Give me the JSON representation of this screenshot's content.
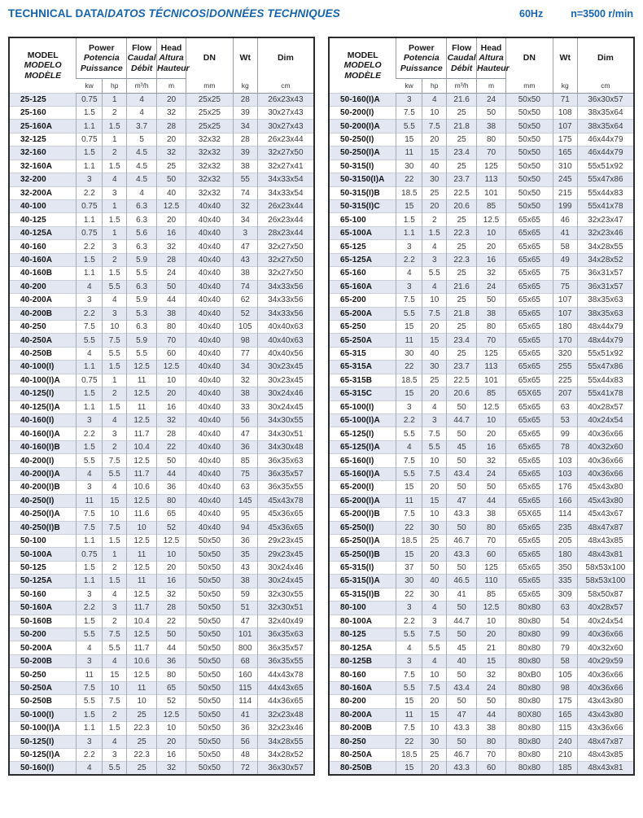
{
  "page": {
    "title_en": "TECHNICAL DATA",
    "title_es": "DATOS TÉCNICOS",
    "title_fr": "DONNÉES TECHNIQUES",
    "title_separator": "/",
    "frequency": "60Hz",
    "speed": "n=3500 r/min",
    "accent_color": "#1463ae",
    "band_color": "#e2e7f1"
  },
  "header": {
    "model": [
      "MODEL",
      "MODELO",
      "MODÈLE"
    ],
    "power": [
      "Power",
      "Potencia",
      "Puissance"
    ],
    "flow": [
      "Flow",
      "Caudal",
      "Débit"
    ],
    "head": [
      "Head",
      "Altura",
      "Hauteur"
    ],
    "dn": "DN",
    "wt": "Wt",
    "dim": "Dim",
    "units": {
      "kw": "kw",
      "hp": "hp",
      "flow": "m³/h",
      "head": "m",
      "dn": "mm",
      "wt": "kg",
      "dim": "cm"
    }
  },
  "tables": {
    "left": {
      "rows": [
        [
          "25-125",
          "0.75",
          "1",
          "4",
          "20",
          "25x25",
          "28",
          "26x23x43"
        ],
        [
          "25-160",
          "1.5",
          "2",
          "4",
          "32",
          "25x25",
          "39",
          "30x27x43"
        ],
        [
          "25-160A",
          "1.1",
          "1.5",
          "3.7",
          "28",
          "25x25",
          "34",
          "30x27x43"
        ],
        [
          "32-125",
          "0.75",
          "1",
          "5",
          "20",
          "32x32",
          "28",
          "26x23x44"
        ],
        [
          "32-160",
          "1.5",
          "2",
          "4.5",
          "32",
          "32x32",
          "39",
          "32x27x50"
        ],
        [
          "32-160A",
          "1.1",
          "1.5",
          "4.5",
          "25",
          "32x32",
          "38",
          "32x27x41"
        ],
        [
          "32-200",
          "3",
          "4",
          "4.5",
          "50",
          "32x32",
          "55",
          "34x33x54"
        ],
        [
          "32-200A",
          "2.2",
          "3",
          "4",
          "40",
          "32x32",
          "74",
          "34x33x54"
        ],
        [
          "40-100",
          "0.75",
          "1",
          "6.3",
          "12.5",
          "40x40",
          "32",
          "26x23x44"
        ],
        [
          "40-125",
          "1.1",
          "1.5",
          "6.3",
          "20",
          "40x40",
          "34",
          "26x23x44"
        ],
        [
          "40-125A",
          "0.75",
          "1",
          "5.6",
          "16",
          "40x40",
          "3",
          "28x23x44"
        ],
        [
          "40-160",
          "2.2",
          "3",
          "6.3",
          "32",
          "40x40",
          "47",
          "32x27x50"
        ],
        [
          "40-160A",
          "1.5",
          "2",
          "5.9",
          "28",
          "40x40",
          "43",
          "32x27x50"
        ],
        [
          "40-160B",
          "1.1",
          "1.5",
          "5.5",
          "24",
          "40x40",
          "38",
          "32x27x50"
        ],
        [
          "40-200",
          "4",
          "5.5",
          "6.3",
          "50",
          "40x40",
          "74",
          "34x33x56"
        ],
        [
          "40-200A",
          "3",
          "4",
          "5.9",
          "44",
          "40x40",
          "62",
          "34x33x56"
        ],
        [
          "40-200B",
          "2.2",
          "3",
          "5.3",
          "38",
          "40x40",
          "52",
          "34x33x56"
        ],
        [
          "40-250",
          "7.5",
          "10",
          "6.3",
          "80",
          "40x40",
          "105",
          "40x40x63"
        ],
        [
          "40-250A",
          "5.5",
          "7.5",
          "5.9",
          "70",
          "40x40",
          "98",
          "40x40x63"
        ],
        [
          "40-250B",
          "4",
          "5.5",
          "5.5",
          "60",
          "40x40",
          "77",
          "40x40x56"
        ],
        [
          "40-100(I)",
          "1.1",
          "1.5",
          "12.5",
          "12.5",
          "40x40",
          "34",
          "30x23x45"
        ],
        [
          "40-100(I)A",
          "0.75",
          "1",
          "11",
          "10",
          "40x40",
          "32",
          "30x23x45"
        ],
        [
          "40-125(I)",
          "1.5",
          "2",
          "12.5",
          "20",
          "40x40",
          "38",
          "30x24x46"
        ],
        [
          "40-125(I)A",
          "1.1",
          "1.5",
          "11",
          "16",
          "40x40",
          "33",
          "30x24x45"
        ],
        [
          "40-160(I)",
          "3",
          "4",
          "12.5",
          "32",
          "40x40",
          "56",
          "34x30x55"
        ],
        [
          "40-160(I)A",
          "2.2",
          "3",
          "11.7",
          "28",
          "40x40",
          "47",
          "34x30x51"
        ],
        [
          "40-160(I)B",
          "1.5",
          "2",
          "10.4",
          "22",
          "40x40",
          "36",
          "34x30x48"
        ],
        [
          "40-200(I)",
          "5.5",
          "7.5",
          "12.5",
          "50",
          "40x40",
          "85",
          "36x35x63"
        ],
        [
          "40-200(I)A",
          "4",
          "5.5",
          "11.7",
          "44",
          "40x40",
          "75",
          "36x35x57"
        ],
        [
          "40-200(I)B",
          "3",
          "4",
          "10.6",
          "36",
          "40x40",
          "63",
          "36x35x55"
        ],
        [
          "40-250(I)",
          "11",
          "15",
          "12.5",
          "80",
          "40x40",
          "145",
          "45x43x78"
        ],
        [
          "40-250(I)A",
          "7.5",
          "10",
          "11.6",
          "65",
          "40x40",
          "95",
          "45x36x65"
        ],
        [
          "40-250(I)B",
          "7.5",
          "7.5",
          "10",
          "52",
          "40x40",
          "94",
          "45x36x65"
        ],
        [
          "50-100",
          "1.1",
          "1.5",
          "12.5",
          "12.5",
          "50x50",
          "36",
          "29x23x45"
        ],
        [
          "50-100A",
          "0.75",
          "1",
          "11",
          "10",
          "50x50",
          "35",
          "29x23x45"
        ],
        [
          "50-125",
          "1.5",
          "2",
          "12.5",
          "20",
          "50x50",
          "43",
          "30x24x46"
        ],
        [
          "50-125A",
          "1.1",
          "1.5",
          "11",
          "16",
          "50x50",
          "38",
          "30x24x45"
        ],
        [
          "50-160",
          "3",
          "4",
          "12.5",
          "32",
          "50x50",
          "59",
          "32x30x55"
        ],
        [
          "50-160A",
          "2.2",
          "3",
          "11.7",
          "28",
          "50x50",
          "51",
          "32x30x51"
        ],
        [
          "50-160B",
          "1.5",
          "2",
          "10.4",
          "22",
          "50x50",
          "47",
          "32x40x49"
        ],
        [
          "50-200",
          "5.5",
          "7.5",
          "12.5",
          "50",
          "50x50",
          "101",
          "36x35x63"
        ],
        [
          "50-200A",
          "4",
          "5.5",
          "11.7",
          "44",
          "50x50",
          "800",
          "36x35x57"
        ],
        [
          "50-200B",
          "3",
          "4",
          "10.6",
          "36",
          "50x50",
          "68",
          "36x35x55"
        ],
        [
          "50-250",
          "11",
          "15",
          "12.5",
          "80",
          "50x50",
          "160",
          "44x43x78"
        ],
        [
          "50-250A",
          "7.5",
          "10",
          "11",
          "65",
          "50x50",
          "115",
          "44x43x65"
        ],
        [
          "50-250B",
          "5.5",
          "7.5",
          "10",
          "52",
          "50x50",
          "114",
          "44x36x65"
        ],
        [
          "50-100(I)",
          "1.5",
          "2",
          "25",
          "12.5",
          "50x50",
          "41",
          "32x23x48"
        ],
        [
          "50-100(I)A",
          "1.1",
          "1.5",
          "22.3",
          "10",
          "50x50",
          "36",
          "32x23x46"
        ],
        [
          "50-125(I)",
          "3",
          "4",
          "25",
          "20",
          "50x50",
          "56",
          "34x28x55"
        ],
        [
          "50-125(I)A",
          "2.2",
          "3",
          "22.3",
          "16",
          "50x50",
          "48",
          "34x28x52"
        ],
        [
          "50-160(I)",
          "4",
          "5.5",
          "25",
          "32",
          "50x50",
          "72",
          "36x30x57"
        ]
      ]
    },
    "right": {
      "rows": [
        [
          "50-160(I)A",
          "3",
          "4",
          "21.6",
          "24",
          "50x50",
          "71",
          "36x30x57"
        ],
        [
          "50-200(I)",
          "7.5",
          "10",
          "25",
          "50",
          "50x50",
          "108",
          "38x35x64"
        ],
        [
          "50-200(I)A",
          "5.5",
          "7.5",
          "21.8",
          "38",
          "50x50",
          "107",
          "38x35x64"
        ],
        [
          "50-250(I)",
          "15",
          "20",
          "25",
          "80",
          "50x50",
          "175",
          "46x44x79"
        ],
        [
          "50-250(I)A",
          "11",
          "15",
          "23.4",
          "70",
          "50x50",
          "165",
          "46x44x79"
        ],
        [
          "50-315(I)",
          "30",
          "40",
          "25",
          "125",
          "50x50",
          "310",
          "55x51x92"
        ],
        [
          "50-3150(I)A",
          "22",
          "30",
          "23.7",
          "113",
          "50x50",
          "245",
          "55x47x86"
        ],
        [
          "50-315(I)B",
          "18.5",
          "25",
          "22.5",
          "101",
          "50x50",
          "215",
          "55x44x83"
        ],
        [
          "50-315(I)C",
          "15",
          "20",
          "20.6",
          "85",
          "50x50",
          "199",
          "55x41x78"
        ],
        [
          "65-100",
          "1.5",
          "2",
          "25",
          "12.5",
          "65x65",
          "46",
          "32x23x47"
        ],
        [
          "65-100A",
          "1.1",
          "1.5",
          "22.3",
          "10",
          "65x65",
          "41",
          "32x23x46"
        ],
        [
          "65-125",
          "3",
          "4",
          "25",
          "20",
          "65x65",
          "58",
          "34x28x55"
        ],
        [
          "65-125A",
          "2.2",
          "3",
          "22.3",
          "16",
          "65x65",
          "49",
          "34x28x52"
        ],
        [
          "65-160",
          "4",
          "5.5",
          "25",
          "32",
          "65x65",
          "75",
          "36x31x57"
        ],
        [
          "65-160A",
          "3",
          "4",
          "21.6",
          "24",
          "65x65",
          "75",
          "36x31x57"
        ],
        [
          "65-200",
          "7.5",
          "10",
          "25",
          "50",
          "65x65",
          "107",
          "38x35x63"
        ],
        [
          "65-200A",
          "5.5",
          "7.5",
          "21.8",
          "38",
          "65x65",
          "107",
          "38x35x63"
        ],
        [
          "65-250",
          "15",
          "20",
          "25",
          "80",
          "65x65",
          "180",
          "48x44x79"
        ],
        [
          "65-250A",
          "11",
          "15",
          "23.4",
          "70",
          "65x65",
          "170",
          "48x44x79"
        ],
        [
          "65-315",
          "30",
          "40",
          "25",
          "125",
          "65x65",
          "320",
          "55x51x92"
        ],
        [
          "65-315A",
          "22",
          "30",
          "23.7",
          "113",
          "65x65",
          "255",
          "55x47x86"
        ],
        [
          "65-315B",
          "18.5",
          "25",
          "22.5",
          "101",
          "65x65",
          "225",
          "55x44x83"
        ],
        [
          "65-315C",
          "15",
          "20",
          "20.6",
          "85",
          "65X65",
          "207",
          "55x41x78"
        ],
        [
          "65-100(I)",
          "3",
          "4",
          "50",
          "12.5",
          "65x65",
          "63",
          "40x28x57"
        ],
        [
          "65-100(I)A",
          "2.2",
          "3",
          "44.7",
          "10",
          "65x65",
          "53",
          "40x24x54"
        ],
        [
          "65-125(I)",
          "5.5",
          "7.5",
          "50",
          "20",
          "65x65",
          "99",
          "40x36x66"
        ],
        [
          "65-125(I)A",
          "4",
          "5.5",
          "45",
          "16",
          "65x65",
          "78",
          "40x32x60"
        ],
        [
          "65-160(I)",
          "7.5",
          "10",
          "50",
          "32",
          "65x65",
          "103",
          "40x36x66"
        ],
        [
          "65-160(I)A",
          "5.5",
          "7.5",
          "43.4",
          "24",
          "65x65",
          "103",
          "40x36x66"
        ],
        [
          "65-200(I)",
          "15",
          "20",
          "50",
          "50",
          "65x65",
          "176",
          "45x43x80"
        ],
        [
          "65-200(I)A",
          "11",
          "15",
          "47",
          "44",
          "65x65",
          "166",
          "45x43x80"
        ],
        [
          "65-200(I)B",
          "7.5",
          "10",
          "43.3",
          "38",
          "65X65",
          "114",
          "45x43x67"
        ],
        [
          "65-250(I)",
          "22",
          "30",
          "50",
          "80",
          "65x65",
          "235",
          "48x47x87"
        ],
        [
          "65-250(I)A",
          "18.5",
          "25",
          "46.7",
          "70",
          "65x65",
          "205",
          "48x43x85"
        ],
        [
          "65-250(I)B",
          "15",
          "20",
          "43.3",
          "60",
          "65x65",
          "180",
          "48x43x81"
        ],
        [
          "65-315(I)",
          "37",
          "50",
          "50",
          "125",
          "65x65",
          "350",
          "58x53x100"
        ],
        [
          "65-315(I)A",
          "30",
          "40",
          "46.5",
          "110",
          "65x65",
          "335",
          "58x53x100"
        ],
        [
          "65-315(I)B",
          "22",
          "30",
          "41",
          "85",
          "65x65",
          "309",
          "58x50x87"
        ],
        [
          "80-100",
          "3",
          "4",
          "50",
          "12.5",
          "80x80",
          "63",
          "40x28x57"
        ],
        [
          "80-100A",
          "2.2",
          "3",
          "44.7",
          "10",
          "80x80",
          "54",
          "40x24x54"
        ],
        [
          "80-125",
          "5.5",
          "7.5",
          "50",
          "20",
          "80x80",
          "99",
          "40x36x66"
        ],
        [
          "80-125A",
          "4",
          "5.5",
          "45",
          "21",
          "80x80",
          "79",
          "40x32x60"
        ],
        [
          "80-125B",
          "3",
          "4",
          "40",
          "15",
          "80x80",
          "58",
          "40x29x59"
        ],
        [
          "80-160",
          "7.5",
          "10",
          "50",
          "32",
          "80xB0",
          "105",
          "40x36x66"
        ],
        [
          "80-160A",
          "5.5",
          "7.5",
          "43.4",
          "24",
          "80x80",
          "98",
          "40x36x66"
        ],
        [
          "80-200",
          "15",
          "20",
          "50",
          "50",
          "80x80",
          "175",
          "43x43x80"
        ],
        [
          "80-200A",
          "11",
          "15",
          "47",
          "44",
          "80X80",
          "165",
          "43x43x80"
        ],
        [
          "80-200B",
          "7.5",
          "10",
          "43.3",
          "38",
          "80x80",
          "115",
          "43x36x66"
        ],
        [
          "80-250",
          "22",
          "30",
          "50",
          "80",
          "80x80",
          "240",
          "48x47x87"
        ],
        [
          "80-250A",
          "18.5",
          "25",
          "46.7",
          "70",
          "80x80",
          "210",
          "48x43x85"
        ],
        [
          "80-250B",
          "15",
          "20",
          "43.3",
          "60",
          "80x80",
          "185",
          "48x43x81"
        ]
      ]
    }
  }
}
